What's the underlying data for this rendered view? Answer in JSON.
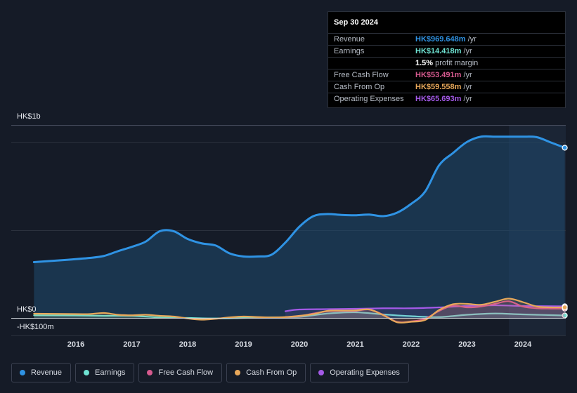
{
  "tooltip": {
    "date": "Sep 30 2024",
    "rows": [
      {
        "label": "Revenue",
        "value": "HK$969.648m",
        "unit": " /yr",
        "color": "#2f93e4"
      },
      {
        "label": "Earnings",
        "value": "HK$14.418m",
        "unit": " /yr",
        "color": "#6fe3d3"
      },
      {
        "label": "",
        "value": "1.5%",
        "unit": " profit margin",
        "color": "#ffffff"
      },
      {
        "label": "Free Cash Flow",
        "value": "HK$53.491m",
        "unit": " /yr",
        "color": "#d65a8e"
      },
      {
        "label": "Cash From Op",
        "value": "HK$59.558m",
        "unit": " /yr",
        "color": "#e8a85a"
      },
      {
        "label": "Operating Expenses",
        "value": "HK$65.693m",
        "unit": " /yr",
        "color": "#a45ae8"
      }
    ]
  },
  "y_labels": {
    "top": "HK$1b",
    "zero": "HK$0",
    "neg": "-HK$100m"
  },
  "legend": [
    {
      "label": "Revenue",
      "color": "#2f93e4"
    },
    {
      "label": "Earnings",
      "color": "#6fe3d3"
    },
    {
      "label": "Free Cash Flow",
      "color": "#d65a8e"
    },
    {
      "label": "Cash From Op",
      "color": "#e8a85a"
    },
    {
      "label": "Operating Expenses",
      "color": "#a45ae8"
    }
  ],
  "chart_data": {
    "type": "area",
    "x_ticks": [
      "2016",
      "2017",
      "2018",
      "2019",
      "2020",
      "2021",
      "2022",
      "2023",
      "2024"
    ],
    "ylim": [
      -100,
      1100
    ],
    "y_unit": "HK$m",
    "highlight_start": 2023.75,
    "series": [
      {
        "name": "Revenue",
        "color": "#2f93e4",
        "x": [
          2015.25,
          2015.75,
          2016.25,
          2016.5,
          2016.75,
          2017.0,
          2017.25,
          2017.5,
          2017.75,
          2018.0,
          2018.25,
          2018.5,
          2018.75,
          2019.0,
          2019.25,
          2019.5,
          2019.75,
          2020.0,
          2020.25,
          2020.5,
          2020.75,
          2021.0,
          2021.25,
          2021.5,
          2021.75,
          2022.0,
          2022.25,
          2022.5,
          2022.75,
          2023.0,
          2023.25,
          2023.5,
          2023.75,
          2024.0,
          2024.25,
          2024.5,
          2024.75
        ],
        "values": [
          318,
          329,
          342,
          353,
          380,
          405,
          435,
          494,
          494,
          450,
          425,
          413,
          368,
          350,
          350,
          360,
          430,
          520,
          580,
          592,
          587,
          585,
          589,
          580,
          600,
          650,
          720,
          870,
          940,
          1003,
          1033,
          1033,
          1033,
          1033,
          1030,
          1000,
          970
        ]
      },
      {
        "name": "Earnings",
        "color": "#6fe3d3",
        "x": [
          2015.25,
          2016.0,
          2016.5,
          2017.0,
          2017.5,
          2018.0,
          2018.5,
          2019.0,
          2019.5,
          2020.0,
          2020.5,
          2021.0,
          2021.5,
          2022.0,
          2022.5,
          2023.0,
          2023.5,
          2024.0,
          2024.75
        ],
        "values": [
          15,
          14,
          12,
          12,
          3,
          0,
          -3,
          0,
          3,
          6,
          25,
          32,
          20,
          10,
          5,
          18,
          25,
          20,
          14
        ]
      },
      {
        "name": "Free Cash Flow",
        "color": "#d65a8e",
        "x": [
          2019.75,
          2020.0,
          2020.25,
          2020.5,
          2020.75,
          2021.0,
          2021.25,
          2021.5,
          2021.75,
          2022.0,
          2022.25,
          2022.5,
          2022.75,
          2023.0,
          2023.25,
          2023.5,
          2023.75,
          2024.0,
          2024.25,
          2024.5,
          2024.75
        ],
        "values": [
          5,
          10,
          25,
          38,
          40,
          40,
          48,
          18,
          -23,
          -20,
          -5,
          40,
          70,
          60,
          65,
          80,
          95,
          65,
          55,
          53,
          53
        ]
      },
      {
        "name": "Cash From Op",
        "color": "#e8a85a",
        "x": [
          2015.25,
          2016.0,
          2016.25,
          2016.5,
          2016.75,
          2017.0,
          2017.25,
          2017.5,
          2017.75,
          2018.0,
          2018.25,
          2018.5,
          2018.75,
          2019.0,
          2019.25,
          2019.5,
          2019.75,
          2020.0,
          2020.25,
          2020.5,
          2020.75,
          2021.0,
          2021.25,
          2021.5,
          2021.75,
          2022.0,
          2022.25,
          2022.5,
          2022.75,
          2023.0,
          2023.25,
          2023.5,
          2023.75,
          2024.0,
          2024.25,
          2024.5,
          2024.75
        ],
        "values": [
          24,
          22,
          22,
          28,
          18,
          15,
          18,
          12,
          8,
          -3,
          -10,
          -5,
          3,
          8,
          5,
          3,
          5,
          12,
          22,
          40,
          42,
          43,
          48,
          16,
          -25,
          -22,
          -12,
          45,
          78,
          80,
          75,
          92,
          110,
          90,
          65,
          60,
          60
        ]
      },
      {
        "name": "Operating Expenses",
        "color": "#a45ae8",
        "x": [
          2019.75,
          2020.0,
          2020.5,
          2021.0,
          2021.5,
          2022.0,
          2022.5,
          2023.0,
          2023.5,
          2024.0,
          2024.75
        ],
        "values": [
          38,
          48,
          50,
          52,
          55,
          55,
          60,
          68,
          72,
          68,
          66
        ]
      }
    ]
  }
}
